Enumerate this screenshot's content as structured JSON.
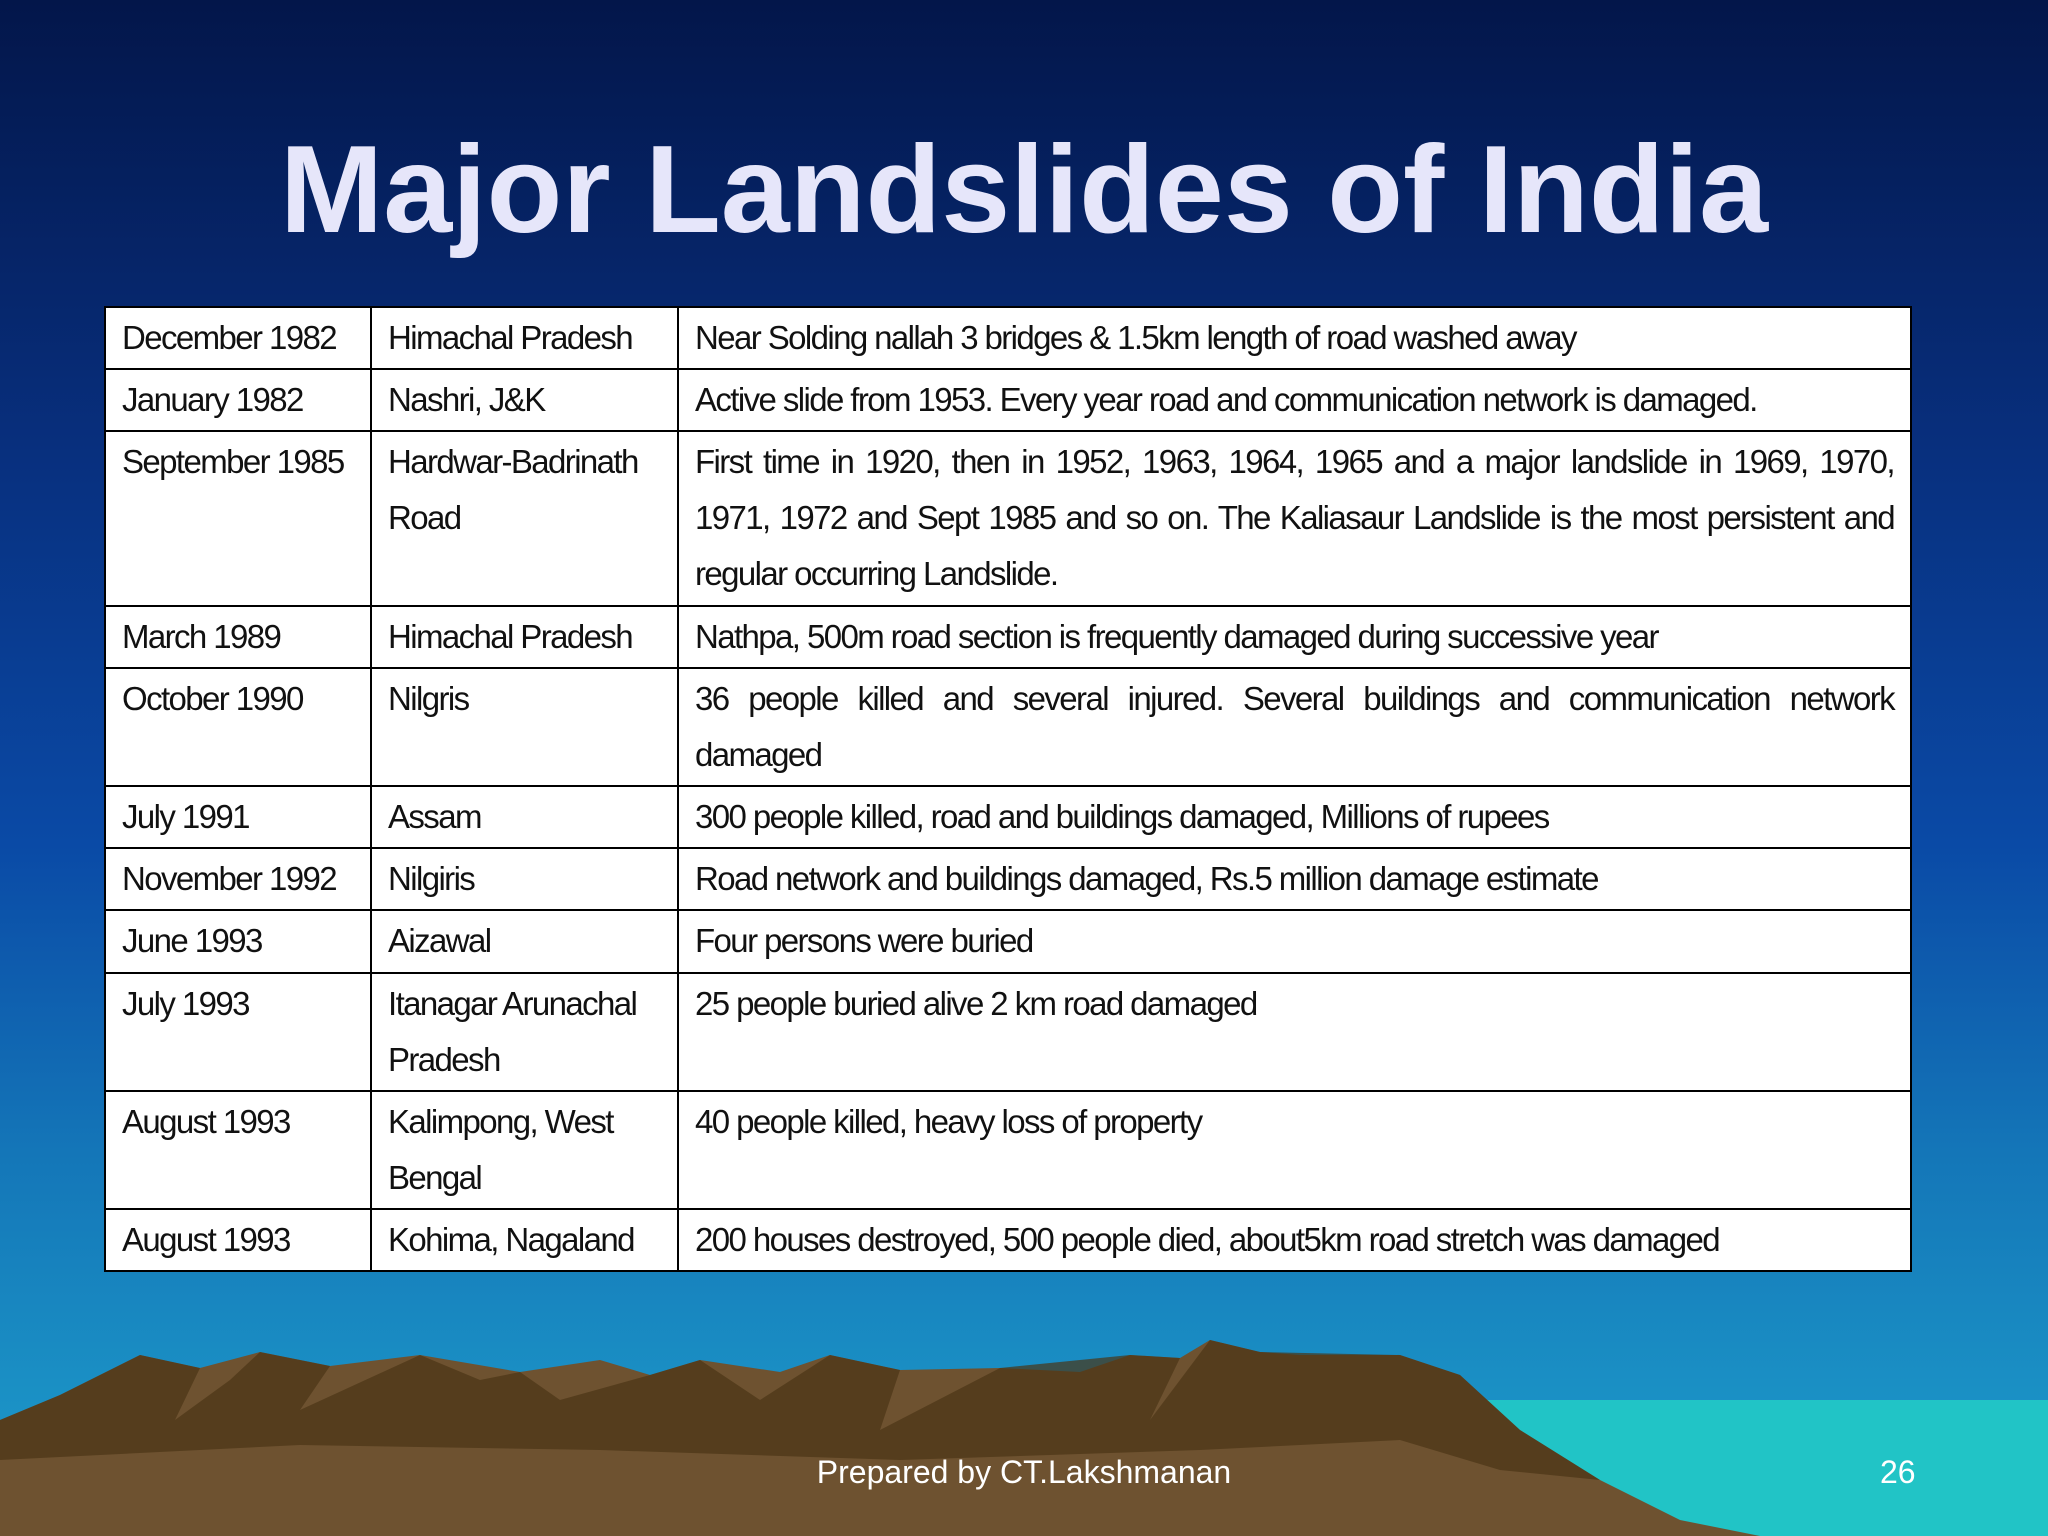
{
  "header": {
    "title": "Major Landslides of India"
  },
  "table": {
    "rows": [
      [
        "December 1982",
        "Himachal Pradesh",
        "Near Solding nallah 3 bridges & 1.5km length of road washed away"
      ],
      [
        "January 1982",
        "Nashri, J&K",
        "Active slide from 1953. Every year road and communication network is damaged."
      ],
      [
        "September 1985",
        "Hardwar-Badrinath Road",
        "First time in 1920, then in 1952, 1963, 1964, 1965 and a major landslide in 1969, 1970, 1971, 1972  and Sept 1985 and so on. The Kaliasaur Landslide is the most persistent and regular occurring Landslide."
      ],
      [
        "March 1989",
        "Himachal Pradesh",
        "Nathpa, 500m road section is frequently damaged during successive year"
      ],
      [
        "October 1990",
        "Nilgris",
        "36 people killed and several injured. Several buildings and communication network damaged"
      ],
      [
        "July 1991",
        "Assam",
        "300 people killed, road and buildings damaged, Millions of rupees"
      ],
      [
        "November 1992",
        "Nilgiris",
        "Road network and buildings damaged, Rs.5 million damage estimate"
      ],
      [
        "June 1993",
        "Aizawal",
        "Four persons were buried"
      ],
      [
        "July 1993",
        "Itanagar Arunachal Pradesh",
        "25 people buried alive 2 km road damaged"
      ],
      [
        "August 1993",
        "Kalimpong, West Bengal",
        "40 people killed, heavy loss of property"
      ],
      [
        "August 1993",
        "Kohima, Nagaland",
        "200 houses destroyed, 500 people died, about5km road stretch was damaged"
      ]
    ]
  },
  "footer": {
    "credit": "Prepared by CT.Lakshmanan",
    "page": "26"
  }
}
